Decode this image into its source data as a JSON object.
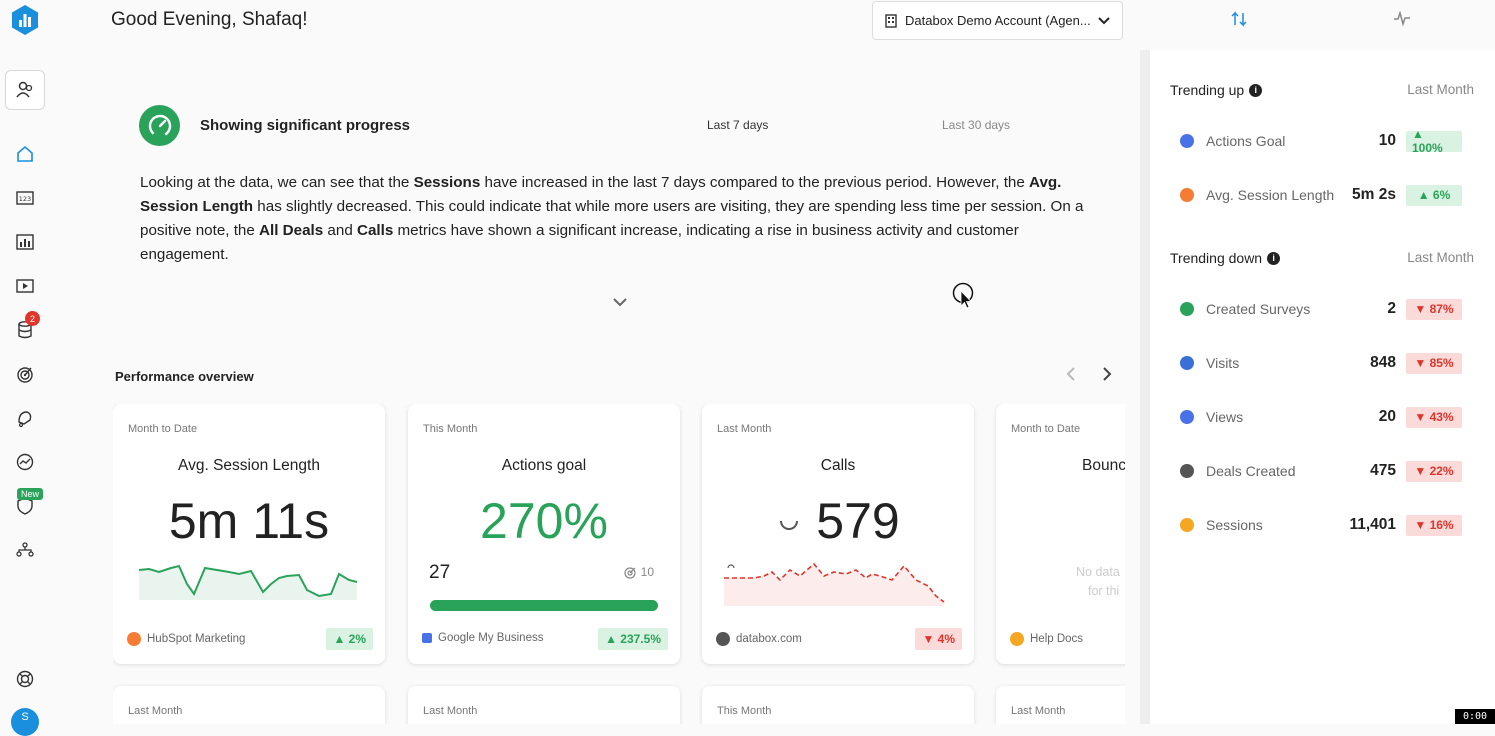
{
  "header": {
    "greeting": "Good Evening, Shafaq!",
    "account": "Databox Demo Account (Agen..."
  },
  "insight": {
    "title": "Showing significant progress",
    "period_active": "Last 7 days",
    "period_inactive": "Last 30 days",
    "text": [
      {
        "t": "Looking at the data, we can see that the ",
        "b": false
      },
      {
        "t": "Sessions",
        "b": true
      },
      {
        "t": " have increased in the last 7 days compared to the previous period. However, the ",
        "b": false
      },
      {
        "t": "Avg. Session Length",
        "b": true
      },
      {
        "t": " has slightly decreased. This could indicate that while more users are visiting, they are spending less time per session. On a positive note, the ",
        "b": false
      },
      {
        "t": "All Deals",
        "b": true
      },
      {
        "t": " and ",
        "b": false
      },
      {
        "t": "Calls",
        "b": true
      },
      {
        "t": " metrics have shown a significant increase, indicating a rise in business activity and customer engagement.",
        "b": false
      }
    ]
  },
  "sidebar": {
    "notification_count": "2",
    "new_label": "New",
    "avatar_initial": "S"
  },
  "performance": {
    "title": "Performance overview",
    "cards": [
      {
        "period": "Month to Date",
        "title": "Avg. Session Length",
        "value": "5m 11s",
        "source": "HubSpot Marketing",
        "change": "▲ 2%",
        "direction": "up",
        "source_color": "#f57c32"
      },
      {
        "period": "This Month",
        "title": "Actions goal",
        "value": "270%",
        "goal_current": "27",
        "goal_target": "10",
        "progress": 1.0,
        "source": "Google My Business",
        "change": "▲ 237.5%",
        "direction": "up",
        "source_color": "#4a72e8"
      },
      {
        "period": "Last Month",
        "title": "Calls",
        "value": "579",
        "source": "databox.com",
        "change": "▼ 4%",
        "direction": "down",
        "source_color": "#555555"
      },
      {
        "period": "Month to Date",
        "title": "Bounc",
        "no_data": "No data",
        "no_data_2": "for thi",
        "source": "Help Docs",
        "source_color": "#f5a623"
      }
    ],
    "second_row_periods": [
      "Last Month",
      "Last Month",
      "This Month",
      "Last Month"
    ]
  },
  "trending_up": {
    "title": "Trending up",
    "info": "i",
    "period": "Last Month",
    "items": [
      {
        "name": "Actions Goal",
        "value": "10",
        "change": "▲ 100%",
        "icon_color": "#4a72e8"
      },
      {
        "name": "Avg. Session Length",
        "value": "5m 2s",
        "change": "▲ 6%",
        "icon_color": "#f57c32"
      }
    ]
  },
  "trending_down": {
    "title": "Trending down",
    "info": "i",
    "period": "Last Month",
    "items": [
      {
        "name": "Created Surveys",
        "value": "2",
        "change": "▼ 87%",
        "icon_color": "#2aa35a"
      },
      {
        "name": "Visits",
        "value": "848",
        "change": "▼ 85%",
        "icon_color": "#3b6fd8"
      },
      {
        "name": "Views",
        "value": "20",
        "change": "▼ 43%",
        "icon_color": "#4a72e8"
      },
      {
        "name": "Deals Created",
        "value": "475",
        "change": "▼ 22%",
        "icon_color": "#555555"
      },
      {
        "name": "Sessions",
        "value": "11,401",
        "change": "▼ 16%",
        "icon_color": "#f5a623"
      }
    ]
  },
  "timer": "0:00"
}
